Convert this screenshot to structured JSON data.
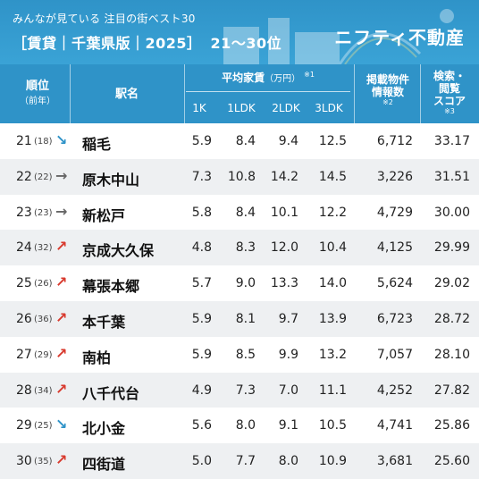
{
  "header": {
    "subtitle": "みんなが見ている 注目の街ベスト30",
    "title": "［賃貸｜千葉県版｜2025］",
    "range": "21〜30位",
    "logo": "ニフティ不動産"
  },
  "columns": {
    "rank": "順位",
    "rank_sub": "（前年）",
    "station": "駅名",
    "rent": "平均家賃",
    "rent_unit": "（万円）",
    "rent_note": "※1",
    "k1": "1K",
    "ldk1": "1LDK",
    "ldk2": "2LDK",
    "ldk3": "3LDK",
    "listings_l1": "掲載物件",
    "listings_l2": "情報数",
    "listings_note": "※2",
    "search_l1": "検索・",
    "search_l2": "閲覧",
    "search_l3": "スコア",
    "search_note": "※3"
  },
  "arrows": {
    "down": "↘",
    "flat": "→",
    "up": "↗"
  },
  "rows": [
    {
      "rank": "21",
      "prev": "(18)",
      "trend": "down",
      "station": "稲毛",
      "k1": "5.9",
      "ldk1": "8.4",
      "ldk2": "9.4",
      "ldk3": "12.5",
      "listings": "6,712",
      "score": "33.17"
    },
    {
      "rank": "22",
      "prev": "(22)",
      "trend": "flat",
      "station": "原木中山",
      "k1": "7.3",
      "ldk1": "10.8",
      "ldk2": "14.2",
      "ldk3": "14.5",
      "listings": "3,226",
      "score": "31.51"
    },
    {
      "rank": "23",
      "prev": "(23)",
      "trend": "flat",
      "station": "新松戸",
      "k1": "5.8",
      "ldk1": "8.4",
      "ldk2": "10.1",
      "ldk3": "12.2",
      "listings": "4,729",
      "score": "30.00"
    },
    {
      "rank": "24",
      "prev": "(32)",
      "trend": "up",
      "station": "京成大久保",
      "k1": "4.8",
      "ldk1": "8.3",
      "ldk2": "12.0",
      "ldk3": "10.4",
      "listings": "4,125",
      "score": "29.99"
    },
    {
      "rank": "25",
      "prev": "(26)",
      "trend": "up",
      "station": "幕張本郷",
      "k1": "5.7",
      "ldk1": "9.0",
      "ldk2": "13.3",
      "ldk3": "14.0",
      "listings": "5,624",
      "score": "29.02"
    },
    {
      "rank": "26",
      "prev": "(36)",
      "trend": "up",
      "station": "本千葉",
      "k1": "5.9",
      "ldk1": "8.1",
      "ldk2": "9.7",
      "ldk3": "13.9",
      "listings": "6,723",
      "score": "28.72"
    },
    {
      "rank": "27",
      "prev": "(29)",
      "trend": "up",
      "station": "南柏",
      "k1": "5.9",
      "ldk1": "8.5",
      "ldk2": "9.9",
      "ldk3": "13.2",
      "listings": "7,057",
      "score": "28.10"
    },
    {
      "rank": "28",
      "prev": "(34)",
      "trend": "up",
      "station": "八千代台",
      "k1": "4.9",
      "ldk1": "7.3",
      "ldk2": "7.0",
      "ldk3": "11.1",
      "listings": "4,252",
      "score": "27.82"
    },
    {
      "rank": "29",
      "prev": "(25)",
      "trend": "down",
      "station": "北小金",
      "k1": "5.6",
      "ldk1": "8.0",
      "ldk2": "9.1",
      "ldk3": "10.5",
      "listings": "4,741",
      "score": "25.86"
    },
    {
      "rank": "30",
      "prev": "(35)",
      "trend": "up",
      "station": "四街道",
      "k1": "5.0",
      "ldk1": "7.7",
      "ldk2": "8.0",
      "ldk3": "10.9",
      "listings": "3,681",
      "score": "25.60"
    }
  ]
}
